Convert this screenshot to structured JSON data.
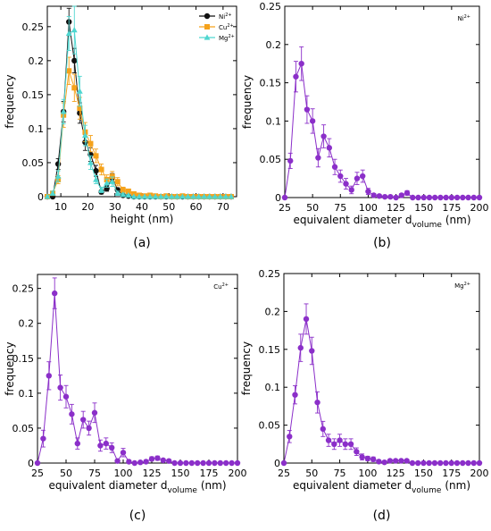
{
  "chart_data": [
    {
      "id": "a",
      "type": "line",
      "caption": "(a)",
      "xlabel": "height (nm)",
      "ylabel": "frequency",
      "xlim": [
        5,
        75
      ],
      "ylim": [
        0,
        0.28
      ],
      "xticks": [
        10,
        20,
        30,
        40,
        50,
        60,
        70
      ],
      "yticks": [
        0,
        0.05,
        0.1,
        0.15,
        0.2,
        0.25
      ],
      "ytick_labels": [
        "0",
        "0.05",
        "0.1",
        "0.15",
        "0.2",
        "0.25"
      ],
      "legend": {
        "position": "top-right"
      },
      "series": [
        {
          "name": "Ni",
          "superscript": "2+",
          "color": "#111111",
          "marker": "circle",
          "x": [
            5,
            7,
            9,
            11,
            13,
            15,
            17,
            19,
            21,
            23,
            25,
            27,
            29,
            31,
            33,
            35,
            37,
            39,
            41,
            43,
            45,
            47,
            49,
            51,
            53,
            55,
            57,
            59,
            61,
            63,
            65,
            67,
            69,
            71,
            73
          ],
          "y": [
            0,
            0,
            0.048,
            0.125,
            0.257,
            0.2,
            0.123,
            0.08,
            0.062,
            0.038,
            0.007,
            0.012,
            0.028,
            0.01,
            0.002,
            0.001,
            0,
            0,
            0,
            0,
            0,
            0,
            0,
            0,
            0,
            0,
            0,
            0,
            0,
            0,
            0,
            0,
            0,
            0,
            0
          ],
          "err": [
            0,
            0,
            0.008,
            0.015,
            0.02,
            0.018,
            0.015,
            0.012,
            0.01,
            0.008,
            0.003,
            0.004,
            0.006,
            0.003,
            0.001,
            0.001,
            0,
            0,
            0,
            0,
            0,
            0,
            0,
            0,
            0,
            0,
            0,
            0,
            0,
            0,
            0,
            0,
            0,
            0,
            0
          ]
        },
        {
          "name": "Cu",
          "superscript": "2+",
          "color": "#f5a21b",
          "marker": "square",
          "x": [
            5,
            7,
            9,
            11,
            13,
            15,
            17,
            19,
            21,
            23,
            25,
            27,
            29,
            31,
            33,
            35,
            37,
            39,
            41,
            43,
            45,
            47,
            49,
            51,
            53,
            55,
            57,
            59,
            61,
            63,
            65,
            67,
            69,
            71,
            73
          ],
          "y": [
            0,
            0.005,
            0.025,
            0.12,
            0.185,
            0.16,
            0.13,
            0.095,
            0.078,
            0.06,
            0.04,
            0.025,
            0.03,
            0.022,
            0.01,
            0.008,
            0.004,
            0.002,
            0.001,
            0.002,
            0.001,
            0,
            0.001,
            0,
            0,
            0.001,
            0,
            0,
            0,
            0,
            0,
            0,
            0,
            0,
            0
          ],
          "err": [
            0,
            0.003,
            0.006,
            0.018,
            0.02,
            0.02,
            0.016,
            0.014,
            0.012,
            0.01,
            0.008,
            0.007,
            0.007,
            0.006,
            0.004,
            0.003,
            0.002,
            0.002,
            0.001,
            0.002,
            0.001,
            0,
            0.001,
            0,
            0,
            0.001,
            0,
            0,
            0,
            0,
            0,
            0,
            0,
            0,
            0
          ]
        },
        {
          "name": "Mg",
          "superscript": "2+",
          "color": "#4fd6d0",
          "marker": "triangle",
          "x": [
            5,
            7,
            9,
            11,
            13,
            15,
            17,
            19,
            21,
            23,
            25,
            27,
            29,
            31,
            33,
            35,
            37,
            39,
            41,
            43,
            45,
            47,
            49,
            51,
            53,
            55,
            57,
            59,
            61,
            63,
            65,
            67,
            69,
            71,
            73
          ],
          "y": [
            0,
            0.005,
            0.03,
            0.125,
            0.24,
            0.245,
            0.155,
            0.09,
            0.05,
            0.025,
            0.01,
            0.02,
            0.022,
            0.005,
            0.003,
            0.002,
            0,
            0,
            0,
            0,
            0,
            0,
            0,
            0,
            0,
            0,
            0,
            0,
            0,
            0,
            0,
            0,
            0,
            0,
            0
          ],
          "err": [
            0,
            0.003,
            0.008,
            0.018,
            0.025,
            0.035,
            0.022,
            0.015,
            0.01,
            0.006,
            0.004,
            0.006,
            0.007,
            0.003,
            0.002,
            0.001,
            0,
            0,
            0,
            0,
            0,
            0,
            0,
            0,
            0,
            0,
            0,
            0,
            0,
            0,
            0,
            0,
            0,
            0,
            0
          ]
        }
      ]
    },
    {
      "id": "b",
      "type": "line",
      "caption": "(b)",
      "ion_label": "Ni",
      "ion_superscript": "2+",
      "xlabel": "equivalent diameter d",
      "xlabel_sub": "volume",
      "xlabel_unit": "(nm)",
      "ylabel": "frequency",
      "xlim": [
        25,
        200
      ],
      "ylim": [
        0,
        0.25
      ],
      "xticks": [
        25,
        50,
        75,
        100,
        125,
        150,
        175,
        200
      ],
      "yticks": [
        0,
        0.05,
        0.1,
        0.15,
        0.2,
        0.25
      ],
      "ytick_labels": [
        "0",
        "0.05",
        "0.1",
        "0.15",
        "0.2",
        "0.25"
      ],
      "series": [
        {
          "color": "#8b2fc9",
          "x": [
            25,
            30,
            35,
            40,
            45,
            50,
            55,
            60,
            65,
            70,
            75,
            80,
            85,
            90,
            95,
            100,
            105,
            110,
            115,
            120,
            125,
            130,
            135,
            140,
            145,
            150,
            155,
            160,
            165,
            170,
            175,
            180,
            185,
            190,
            195,
            200
          ],
          "y": [
            0,
            0.048,
            0.158,
            0.175,
            0.115,
            0.1,
            0.052,
            0.08,
            0.065,
            0.04,
            0.028,
            0.018,
            0.01,
            0.025,
            0.028,
            0.008,
            0.003,
            0.002,
            0.001,
            0.001,
            0,
            0.003,
            0.006,
            0,
            0,
            0,
            0,
            0,
            0,
            0,
            0,
            0,
            0,
            0,
            0,
            0
          ],
          "err": [
            0,
            0.01,
            0.02,
            0.022,
            0.018,
            0.016,
            0.012,
            0.015,
            0.012,
            0.01,
            0.008,
            0.007,
            0.005,
            0.008,
            0.008,
            0.004,
            0.002,
            0.002,
            0.001,
            0.001,
            0,
            0.002,
            0.003,
            0,
            0,
            0,
            0,
            0,
            0,
            0,
            0,
            0,
            0,
            0,
            0,
            0
          ]
        }
      ]
    },
    {
      "id": "c",
      "type": "line",
      "caption": "(c)",
      "ion_label": "Cu",
      "ion_superscript": "2+",
      "xlabel": "equivalent diameter d",
      "xlabel_sub": "volume",
      "xlabel_unit": "(nm)",
      "ylabel": "frequency",
      "xlim": [
        25,
        200
      ],
      "ylim": [
        0,
        0.27
      ],
      "xticks": [
        25,
        50,
        75,
        100,
        125,
        150,
        175,
        200
      ],
      "yticks": [
        0,
        0.05,
        0.1,
        0.15,
        0.2,
        0.25
      ],
      "ytick_labels": [
        "0",
        "0.05",
        "0.1",
        "0.15",
        "0.2",
        "0.25"
      ],
      "series": [
        {
          "color": "#8b2fc9",
          "x": [
            25,
            30,
            35,
            40,
            45,
            50,
            55,
            60,
            65,
            70,
            75,
            80,
            85,
            90,
            95,
            100,
            105,
            110,
            115,
            120,
            125,
            130,
            135,
            140,
            145,
            150,
            155,
            160,
            165,
            170,
            175,
            180,
            185,
            190,
            195,
            200
          ],
          "y": [
            0,
            0.035,
            0.125,
            0.243,
            0.108,
            0.095,
            0.07,
            0.028,
            0.062,
            0.05,
            0.072,
            0.025,
            0.028,
            0.022,
            0.003,
            0.015,
            0.002,
            0,
            0.001,
            0.002,
            0.006,
            0.007,
            0.004,
            0.003,
            0,
            0,
            0,
            0,
            0,
            0,
            0,
            0,
            0,
            0,
            0,
            0
          ],
          "err": [
            0,
            0.012,
            0.02,
            0.022,
            0.018,
            0.016,
            0.014,
            0.008,
            0.012,
            0.01,
            0.014,
            0.008,
            0.008,
            0.007,
            0.002,
            0.006,
            0.002,
            0,
            0.001,
            0.002,
            0.003,
            0.003,
            0.002,
            0.002,
            0,
            0,
            0,
            0,
            0,
            0,
            0,
            0,
            0,
            0,
            0,
            0
          ]
        }
      ]
    },
    {
      "id": "d",
      "type": "line",
      "caption": "(d)",
      "ion_label": "Mg",
      "ion_superscript": "2+",
      "xlabel": "equivalent diameter d",
      "xlabel_sub": "volume",
      "xlabel_unit": "(nm)",
      "ylabel": "frequency",
      "xlim": [
        25,
        200
      ],
      "ylim": [
        0,
        0.25
      ],
      "xticks": [
        25,
        50,
        75,
        100,
        125,
        150,
        175,
        200
      ],
      "yticks": [
        0,
        0.05,
        0.1,
        0.15,
        0.2,
        0.25
      ],
      "ytick_labels": [
        "0",
        "0.05",
        "0.1",
        "0.15",
        "0.2",
        "0.25"
      ],
      "series": [
        {
          "color": "#8b2fc9",
          "x": [
            25,
            30,
            35,
            40,
            45,
            50,
            55,
            60,
            65,
            70,
            75,
            80,
            85,
            90,
            95,
            100,
            105,
            110,
            115,
            120,
            125,
            130,
            135,
            140,
            145,
            150,
            155,
            160,
            165,
            170,
            175,
            180,
            185,
            190,
            195,
            200
          ],
          "y": [
            0,
            0.035,
            0.09,
            0.152,
            0.19,
            0.148,
            0.08,
            0.045,
            0.03,
            0.025,
            0.03,
            0.025,
            0.025,
            0.015,
            0.008,
            0.006,
            0.005,
            0.002,
            0.001,
            0.003,
            0.003,
            0.003,
            0.003,
            0,
            0,
            0,
            0,
            0,
            0,
            0,
            0,
            0,
            0,
            0,
            0,
            0
          ],
          "err": [
            0,
            0.008,
            0.012,
            0.018,
            0.02,
            0.018,
            0.014,
            0.01,
            0.008,
            0.007,
            0.008,
            0.007,
            0.007,
            0.005,
            0.004,
            0.003,
            0.003,
            0.002,
            0.001,
            0.002,
            0.002,
            0.002,
            0.002,
            0,
            0,
            0,
            0,
            0,
            0,
            0,
            0,
            0,
            0,
            0,
            0,
            0
          ]
        }
      ]
    }
  ]
}
